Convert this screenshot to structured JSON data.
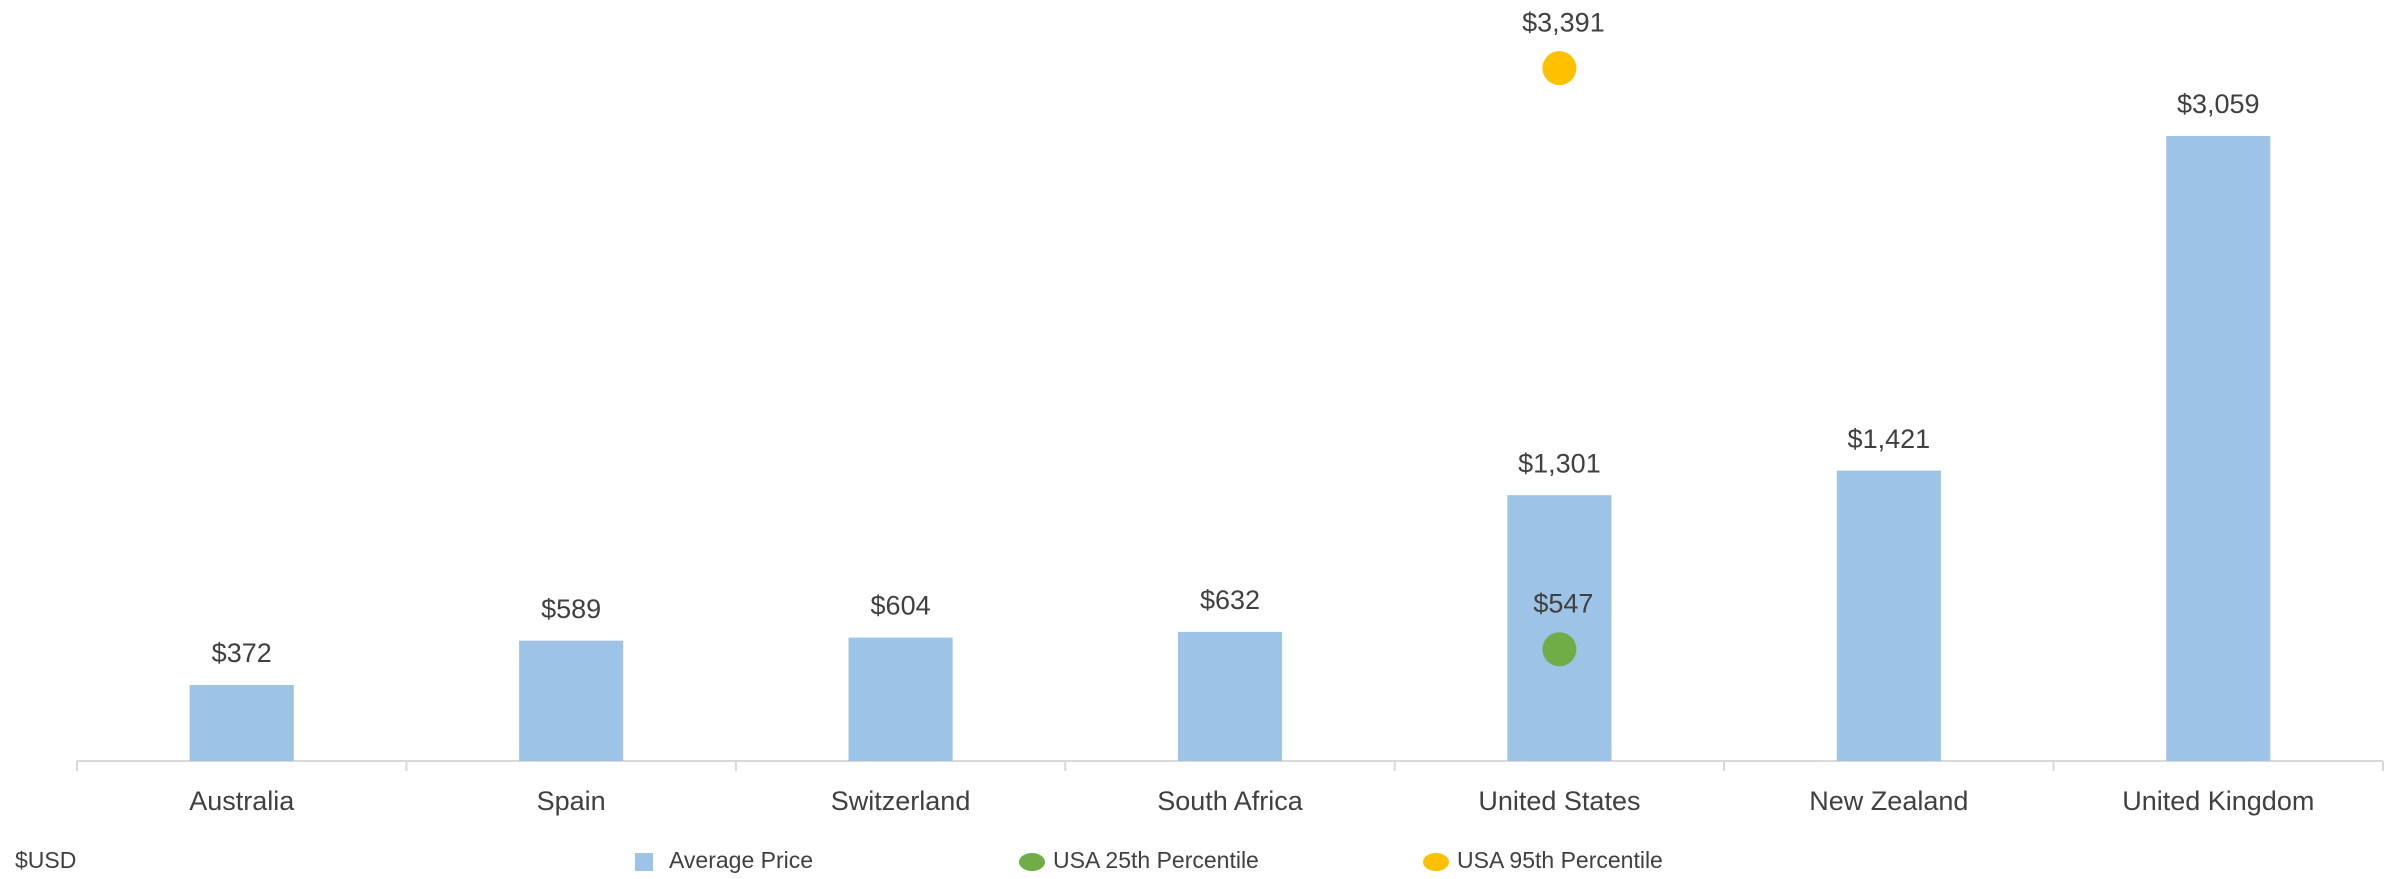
{
  "chart_data": {
    "type": "bar",
    "unit_label": "$USD",
    "categories": [
      "Australia",
      "Spain",
      "Switzerland",
      "South Africa",
      "United States",
      "New Zealand",
      "United Kingdom"
    ],
    "series": [
      {
        "name": "Average Price",
        "type": "bar",
        "color": "#9dc3e6",
        "values": [
          372,
          589,
          604,
          632,
          1301,
          1421,
          3059
        ],
        "value_labels": [
          "$372",
          "$589",
          "$604",
          "$632",
          "$1,301",
          "$1,421",
          "$3,059"
        ]
      },
      {
        "name": "USA 25th Percentile",
        "type": "scatter",
        "color": "#70ad47",
        "values": [
          null,
          null,
          null,
          null,
          547,
          null,
          null
        ],
        "value_labels": [
          null,
          null,
          null,
          null,
          "$547",
          null,
          null
        ]
      },
      {
        "name": "USA 95th Percentile",
        "type": "scatter",
        "color": "#ffc000",
        "values": [
          null,
          null,
          null,
          null,
          3391,
          null,
          null
        ],
        "value_labels": [
          null,
          null,
          null,
          null,
          "$3,391",
          null,
          null
        ]
      }
    ],
    "ylim": [
      0,
      3700
    ],
    "grid": false
  }
}
